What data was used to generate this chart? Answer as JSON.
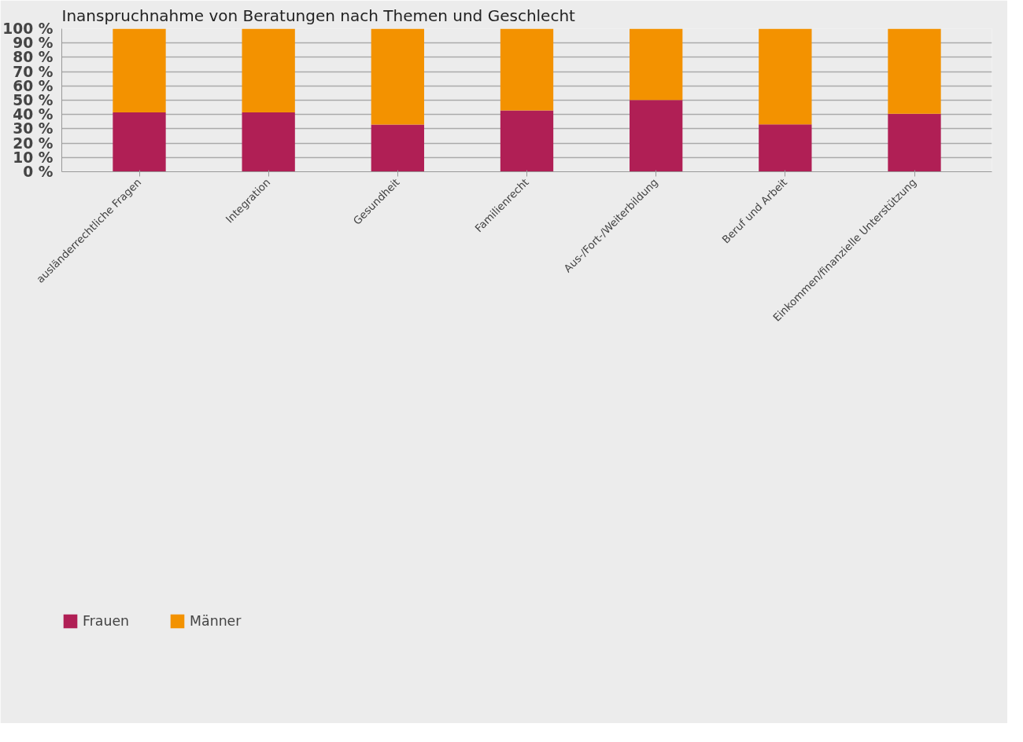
{
  "chart_data": {
    "type": "bar",
    "title": "Inanspruchnahme von Beratungen nach Themen und Geschlecht",
    "categories": [
      "ausländerrechtliche Fragen",
      "Integration",
      "Gesundheit",
      "Familienrecht",
      "Aus-/Fort-/Weiterbildung",
      "Beruf und Arbeit",
      "Einkommen/finanzielle Unterstützung"
    ],
    "stacked": true,
    "series": [
      {
        "name": "Frauen",
        "color": "#b01f55",
        "values": [
          41.5,
          41.5,
          33,
          42.8,
          50.2,
          33.1,
          40.5
        ]
      },
      {
        "name": "Männer",
        "color": "#f39200",
        "values": [
          58.5,
          58.5,
          67,
          57.2,
          49.8,
          66.9,
          59.5
        ]
      }
    ],
    "ylim": [
      0,
      100
    ],
    "yticks": [
      {
        "value": 0,
        "label": "0 %"
      },
      {
        "value": 10,
        "label": "10 %"
      },
      {
        "value": 20,
        "label": "20 %"
      },
      {
        "value": 30,
        "label": "30 %"
      },
      {
        "value": 40,
        "label": "40 %"
      },
      {
        "value": 50,
        "label": "50 %"
      },
      {
        "value": 60,
        "label": "60 %"
      },
      {
        "value": 70,
        "label": "70 %"
      },
      {
        "value": 80,
        "label": "80 %"
      },
      {
        "value": 90,
        "label": "90 %"
      },
      {
        "value": 100,
        "label": "100 %"
      }
    ],
    "grid": "y",
    "legend": "bottom left"
  }
}
